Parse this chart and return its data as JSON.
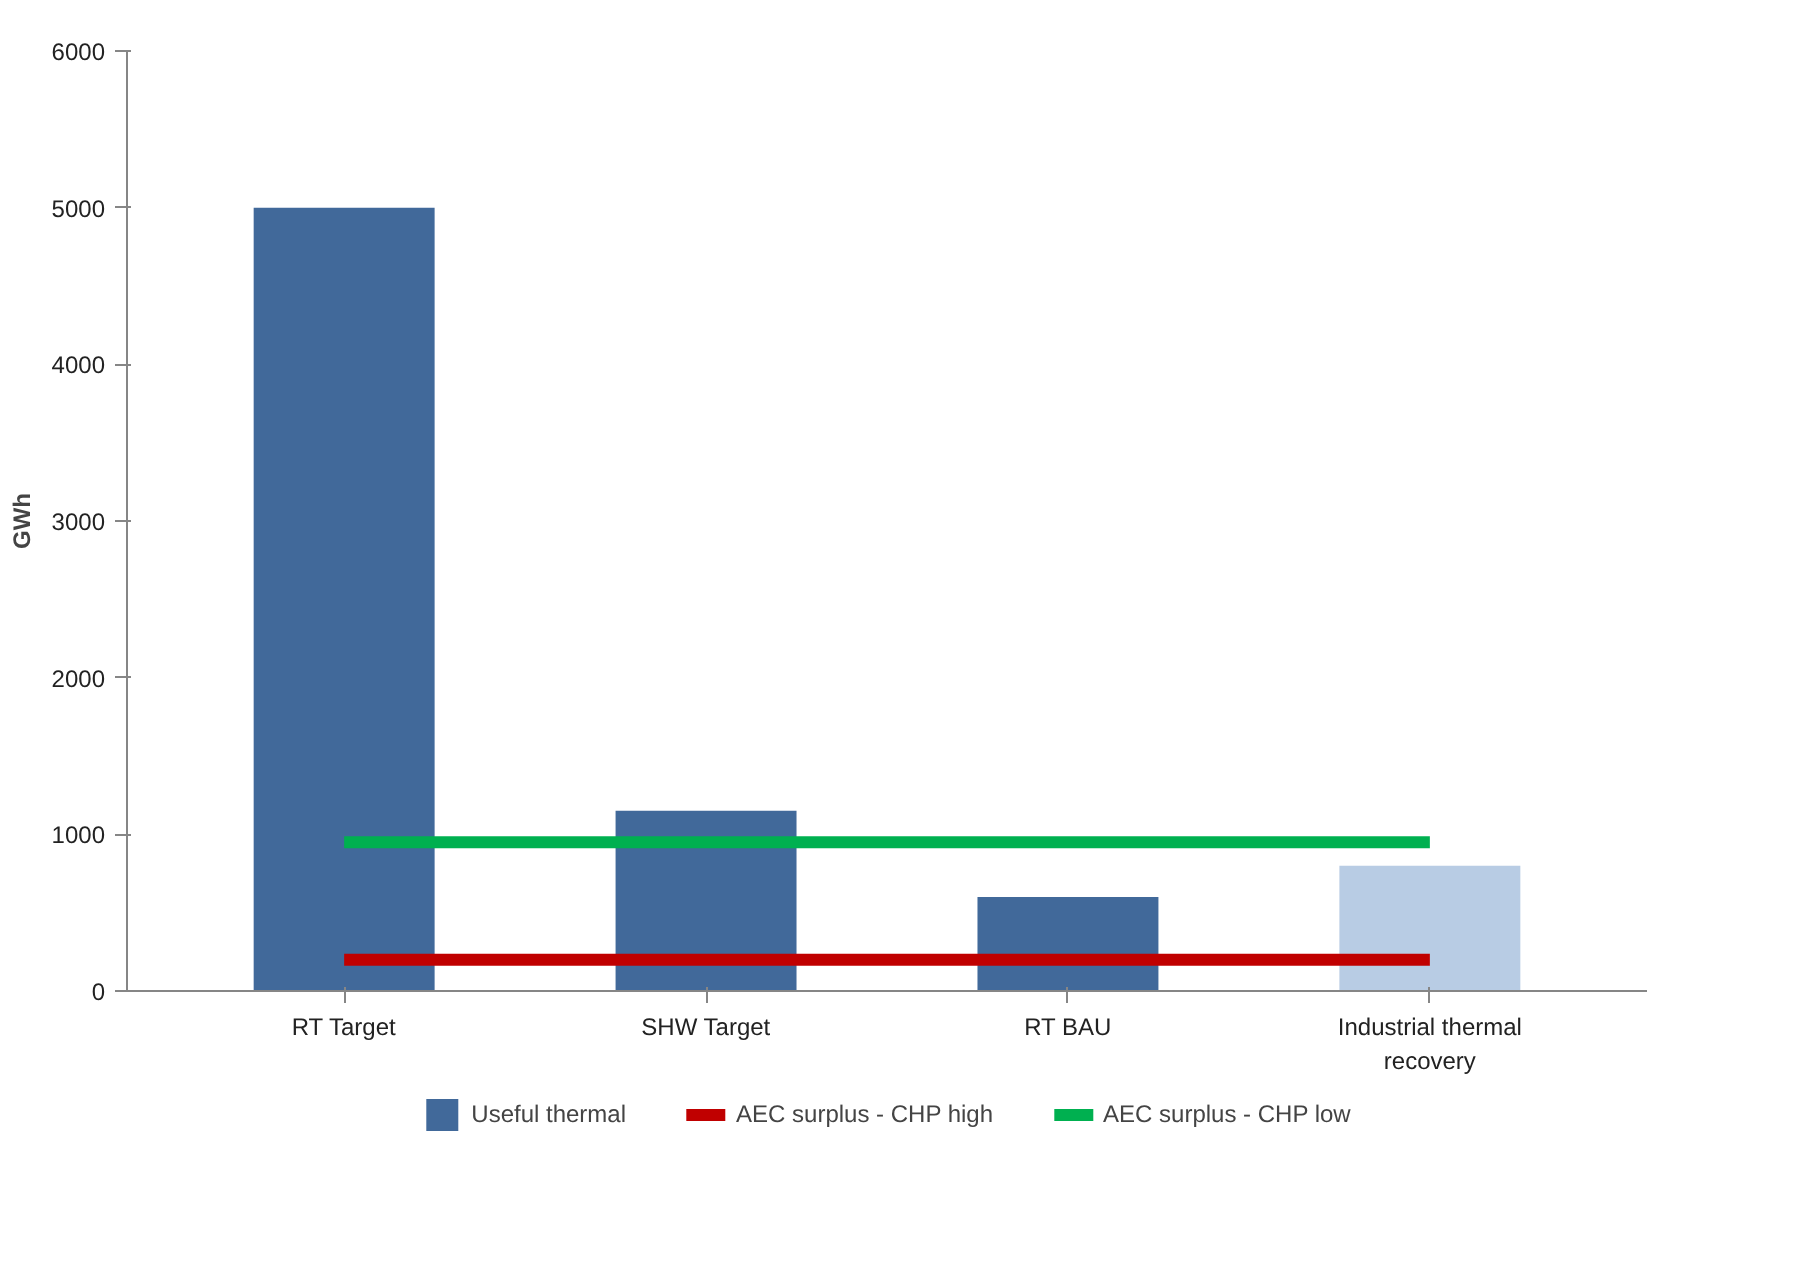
{
  "chart_data": {
    "type": "bar",
    "ylabel": "GWh",
    "categories": [
      "RT Target",
      "SHW Target",
      "RT BAU",
      "Industrial thermal recovery"
    ],
    "series": [
      {
        "name": "Useful thermal",
        "color": "#41699a",
        "colors": [
          "#41699a",
          "#41699a",
          "#41699a",
          "#b8cce4"
        ],
        "values": [
          5000,
          1150,
          600,
          800
        ]
      },
      {
        "name": "AEC surplus - CHP high",
        "type": "line",
        "color": "#c00000",
        "values": [
          200,
          200,
          200,
          200
        ]
      },
      {
        "name": "AEC surplus - CHP low",
        "type": "line",
        "color": "#00b050",
        "values": [
          950,
          950,
          950,
          950
        ]
      }
    ],
    "ylim": [
      0,
      6000
    ],
    "yticks": [
      0,
      1000,
      2000,
      3000,
      4000,
      5000,
      6000
    ],
    "grid": false,
    "legend": "bottom"
  }
}
